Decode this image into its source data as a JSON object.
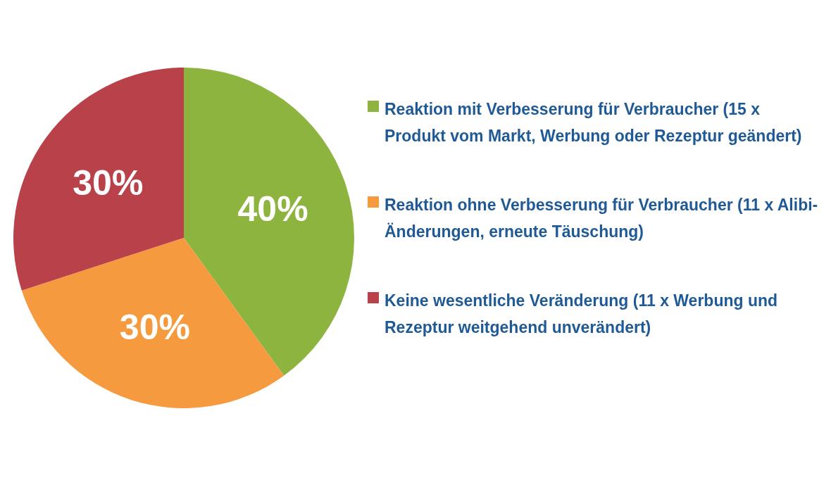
{
  "chart_data": {
    "type": "pie",
    "categories": [
      "Reaktion mit Verbesserung für Verbraucher (15 x Produkt vom Markt, Werbung oder Rezeptur geändert)",
      "Reaktion ohne Verbesserung für Verbraucher (11 x Alibi-Änderungen, erneute Täuschung)",
      "Keine wesentliche Veränderung (11 x Werbung und Rezeptur weitgehend unverändert)"
    ],
    "values": [
      40,
      30,
      30
    ],
    "colors": [
      "#8db43e",
      "#f59a3e",
      "#b9424a"
    ],
    "value_labels": [
      "40%",
      "30%",
      "30%"
    ],
    "legend": "right"
  }
}
